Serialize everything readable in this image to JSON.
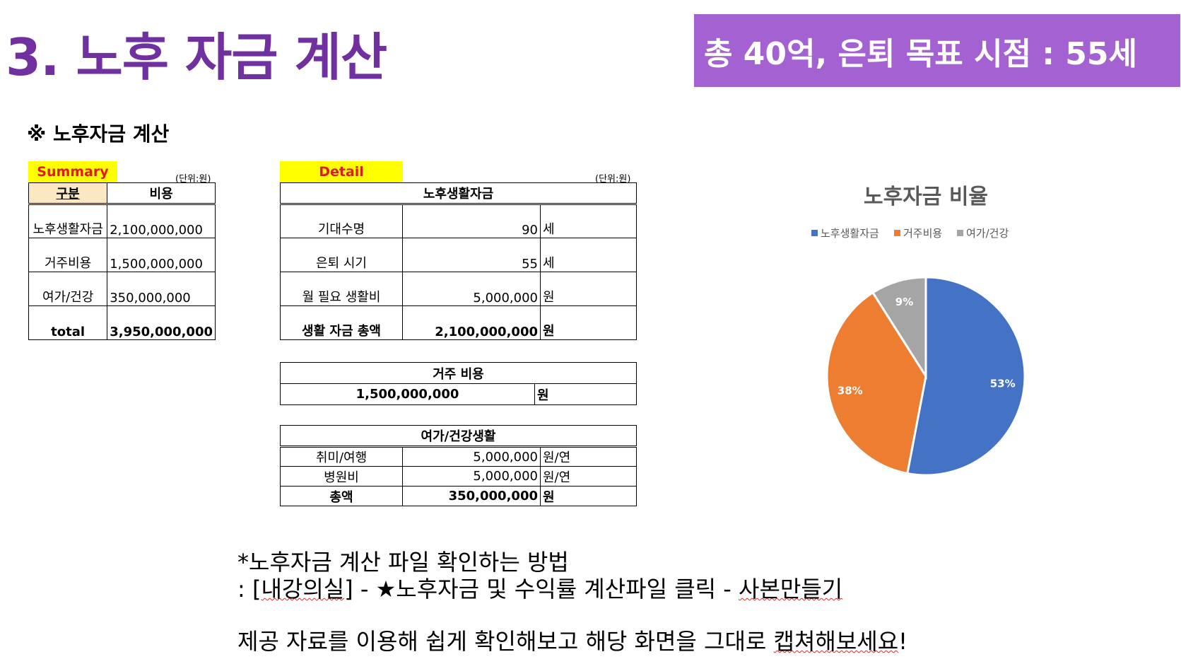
{
  "page_title": "3. 노후 자금 계산",
  "goal_banner": "총 40억, 은퇴 목표 시점  : 55세",
  "section_heading": "※ 노후자금 계산",
  "summary": {
    "tag": "Summary",
    "unit": "(단위:원)",
    "col_headers": [
      "구분",
      "비용"
    ],
    "rows": [
      {
        "label": "노후생활자금",
        "value": "2,100,000,000"
      },
      {
        "label": "거주비용",
        "value": "1,500,000,000"
      },
      {
        "label": "여가/건강",
        "value": "350,000,000"
      },
      {
        "label": "total",
        "value": "3,950,000,000"
      }
    ]
  },
  "detail": {
    "tag": "Detail",
    "unit": "(단위:원)",
    "living": {
      "header": "노후생활자금",
      "rows": [
        {
          "label": "기대수명",
          "value": "90",
          "unit": "세"
        },
        {
          "label": "은퇴 시기",
          "value": "55",
          "unit": "세"
        },
        {
          "label": "월 필요 생활비",
          "value": "5,000,000",
          "unit": "원"
        },
        {
          "label": "생활 자금 총액",
          "value": "2,100,000,000",
          "unit": "원"
        }
      ]
    },
    "housing": {
      "header": "거주 비용",
      "value": "1,500,000,000",
      "unit": "원"
    },
    "leisure": {
      "header": "여가/건강생활",
      "rows": [
        {
          "label": "취미/여행",
          "value": "5,000,000",
          "unit": "원/연"
        },
        {
          "label": "병원비",
          "value": "5,000,000",
          "unit": "원/연"
        },
        {
          "label": "총액",
          "value": "350,000,000",
          "unit": "원"
        }
      ]
    }
  },
  "chart_data": {
    "type": "pie",
    "title": "노후자금 비율",
    "categories": [
      "노후생활자금",
      "거주비용",
      "여가/건강"
    ],
    "values": [
      53,
      38,
      9
    ],
    "labels": [
      "53%",
      "38%",
      "9%"
    ],
    "colors": [
      "#4472c4",
      "#ed7d31",
      "#a5a5a5"
    ],
    "legend": "top"
  },
  "footer": {
    "line1": "*노후자금 계산 파일 확인하는 방법",
    "line2_prefix": ": [",
    "line2_link1": "내강의실",
    "line2_middle": "] - ★노후자금 및 수익률 계산파일 클릭 - ",
    "line2_link2": "사본만들기",
    "line3_prefix": "제공 자료를 이용해 쉽게 확인해보고 해당 화면을 그대로 ",
    "line3_link": "캡쳐해보세요",
    "line3_suffix": "!"
  }
}
